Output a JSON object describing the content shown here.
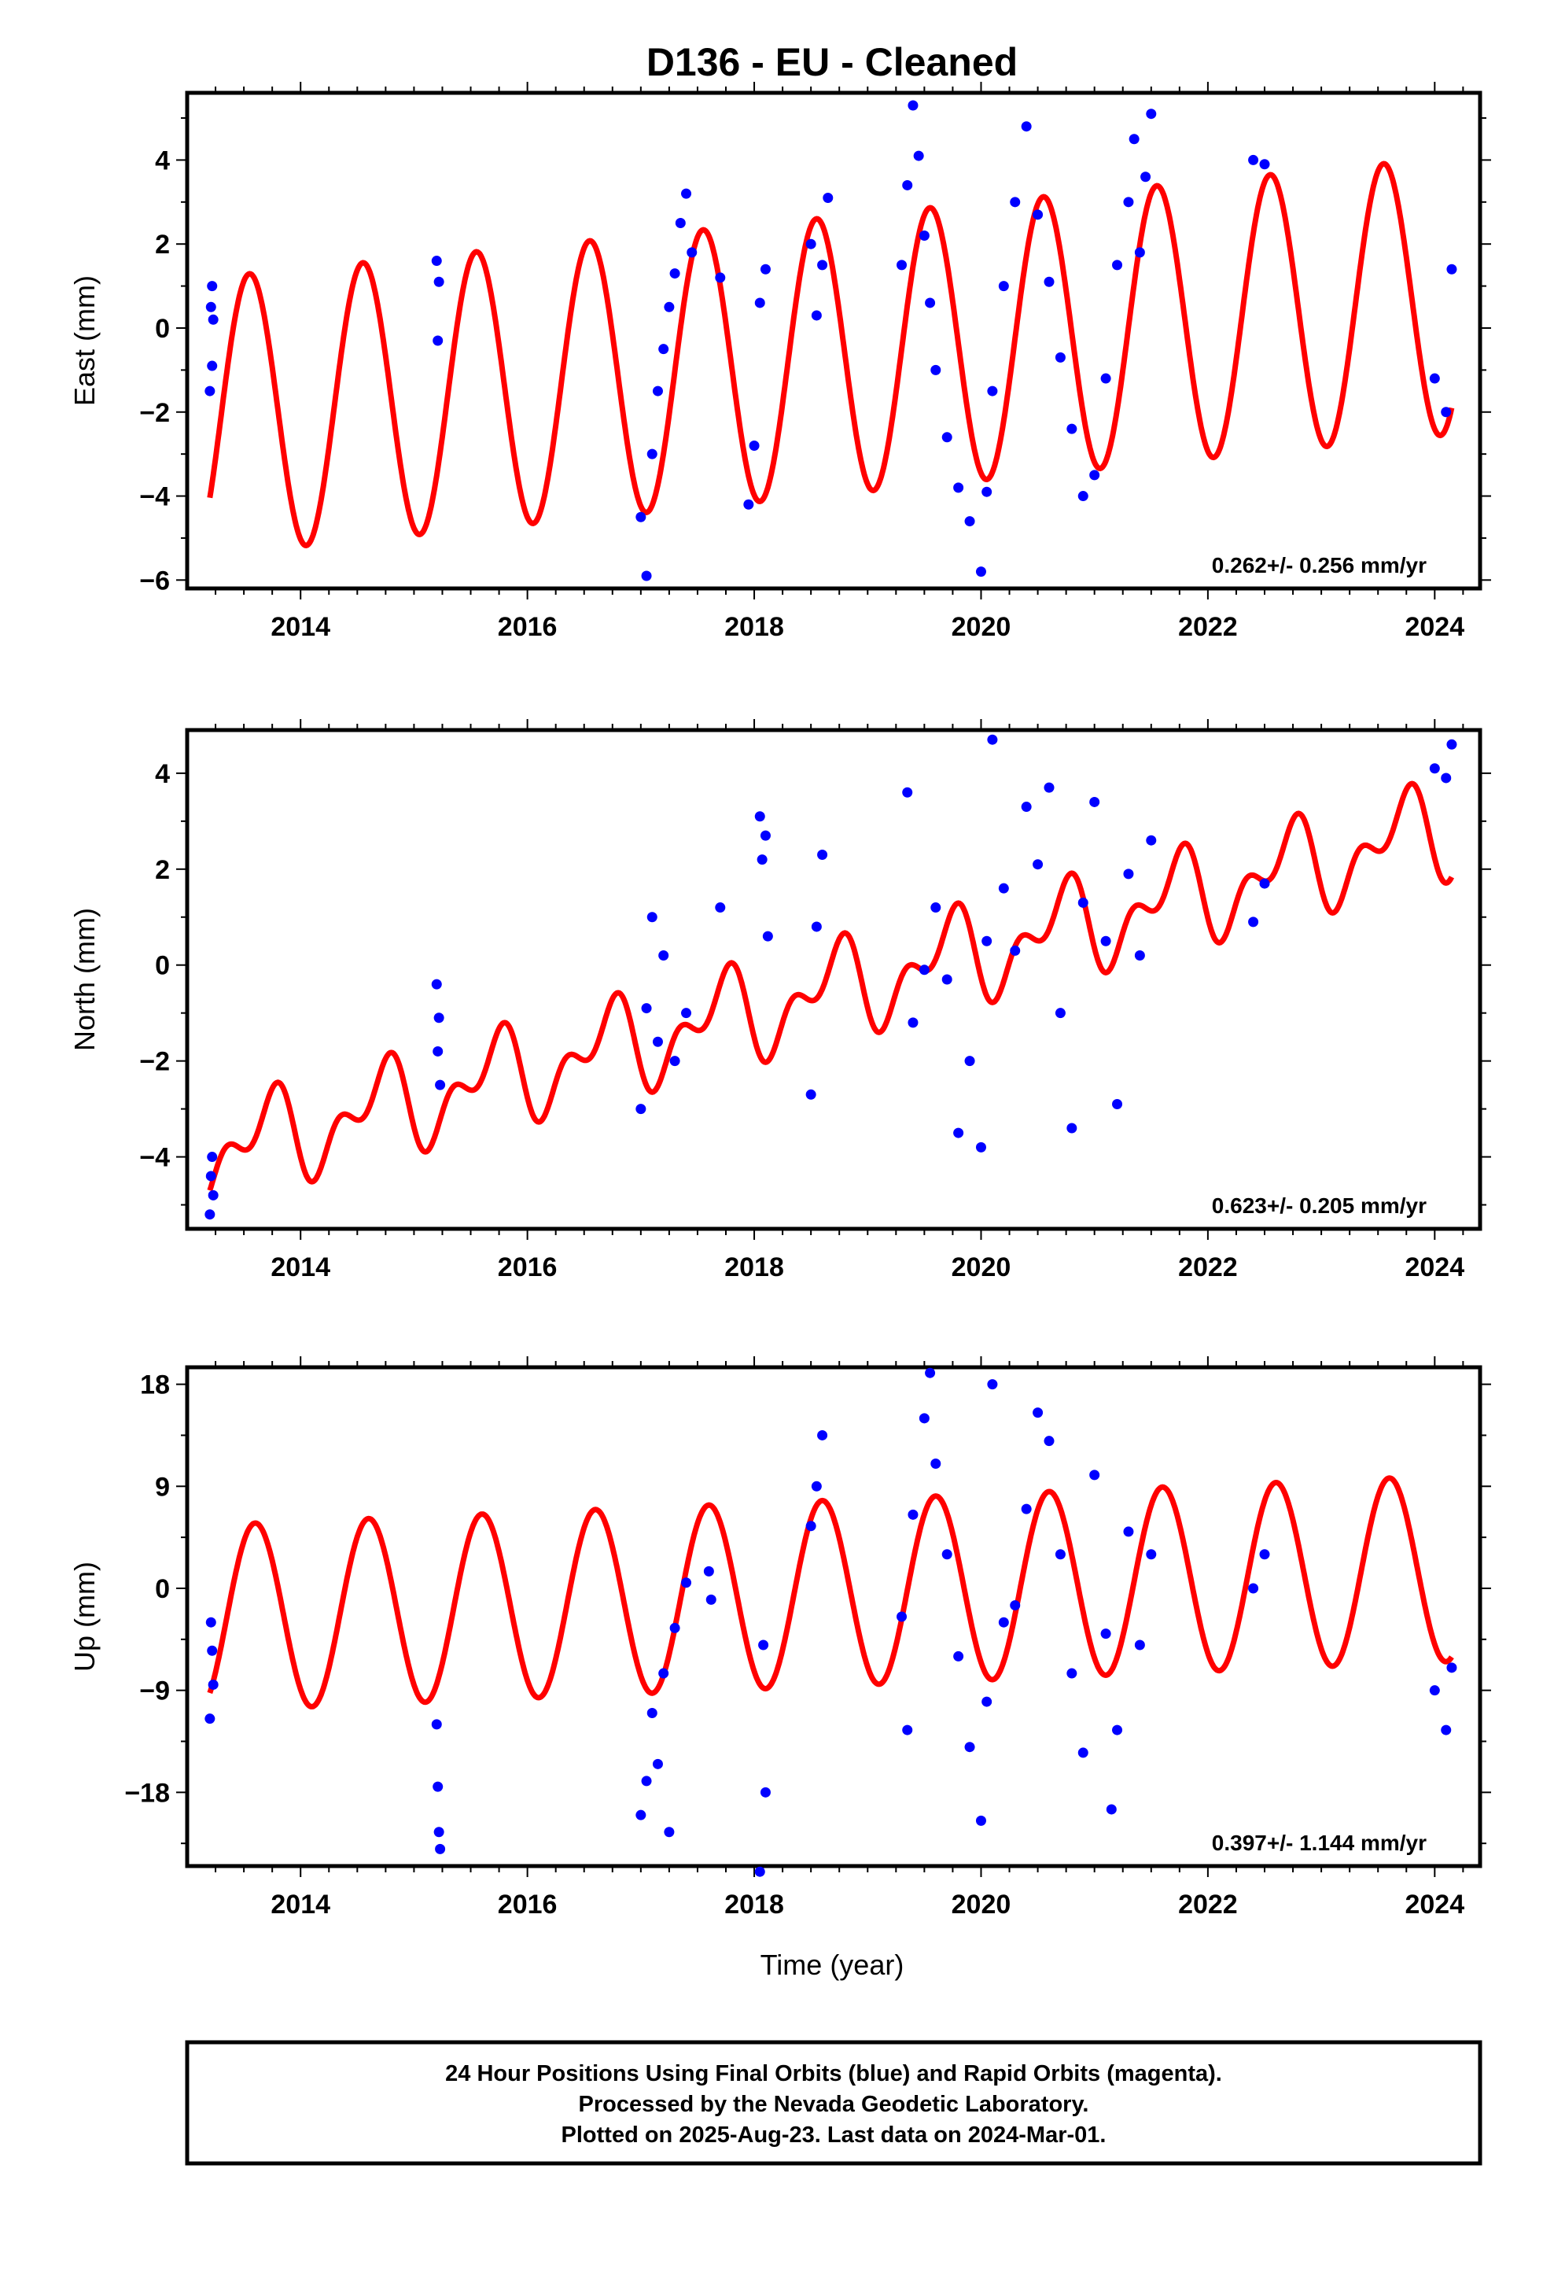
{
  "figure": {
    "title": "D136  - EU - Cleaned",
    "xlabel": "Time (year)",
    "footer": [
      "24 Hour Positions Using Final Orbits (blue) and Rapid Orbits (magenta).",
      "Processed by the Nevada Geodetic Laboratory.",
      "Plotted on 2025-Aug-23. Last data on 2024-Mar-01."
    ]
  },
  "colors": {
    "points": "#0000ff",
    "model": "#ff0000",
    "frame": "#000000"
  },
  "chart_data": [
    {
      "type": "scatter",
      "title": "D136  - EU - Cleaned",
      "ylabel": "East (mm)",
      "xlabel": "",
      "xlim": [
        2013.0,
        2024.4
      ],
      "ylim": [
        -6.2,
        5.6
      ],
      "xticks": [
        2014,
        2016,
        2018,
        2020,
        2022,
        2024
      ],
      "yticks": [
        -6,
        -4,
        -2,
        0,
        2,
        4
      ],
      "rate_label": "0.262+/- 0.256 mm/yr",
      "model": {
        "start": 2013.2,
        "end": 2024.15,
        "offset": -2.1,
        "rate": 0.262,
        "amplitude": 3.3,
        "phase_year": 2013.3
      },
      "series": [
        {
          "color": "blue",
          "x": [
            2013.2,
            2013.21,
            2013.22,
            2013.22,
            2013.23,
            2015.2,
            2015.21,
            2015.22,
            2017.0,
            2017.05,
            2017.1,
            2017.15,
            2017.2,
            2017.25,
            2017.3,
            2017.35,
            2017.4,
            2017.45,
            2017.7,
            2017.95,
            2018.0,
            2018.05,
            2018.1,
            2018.5,
            2018.55,
            2018.6,
            2018.65,
            2019.3,
            2019.35,
            2019.4,
            2019.45,
            2019.5,
            2019.55,
            2019.6,
            2019.7,
            2019.8,
            2019.9,
            2020.0,
            2020.05,
            2020.1,
            2020.2,
            2020.3,
            2020.4,
            2020.5,
            2020.6,
            2020.7,
            2020.8,
            2020.9,
            2021.0,
            2021.1,
            2021.2,
            2021.3,
            2021.35,
            2021.4,
            2021.45,
            2021.5,
            2022.4,
            2022.5,
            2024.0,
            2024.1,
            2024.15
          ],
          "y": [
            -1.5,
            0.5,
            -0.9,
            1.0,
            0.2,
            1.6,
            -0.3,
            1.1,
            -4.5,
            -5.9,
            -3.0,
            -1.5,
            -0.5,
            0.5,
            1.3,
            2.5,
            3.2,
            1.8,
            1.2,
            -4.2,
            -2.8,
            0.6,
            1.4,
            2.0,
            0.3,
            1.5,
            3.1,
            1.5,
            3.4,
            5.3,
            4.1,
            2.2,
            0.6,
            -1.0,
            -2.6,
            -3.8,
            -4.6,
            -5.8,
            -3.9,
            -1.5,
            1.0,
            3.0,
            4.8,
            2.7,
            1.1,
            -0.7,
            -2.4,
            -4.0,
            -3.5,
            -1.2,
            1.5,
            3.0,
            4.5,
            1.8,
            3.6,
            5.1,
            4.0,
            3.9,
            -1.2,
            -2.0,
            1.4
          ]
        }
      ]
    },
    {
      "type": "scatter",
      "title": "",
      "ylabel": "North (mm)",
      "xlabel": "",
      "xlim": [
        2013.0,
        2024.4
      ],
      "ylim": [
        -5.5,
        4.9
      ],
      "xticks": [
        2014,
        2016,
        2018,
        2020,
        2022,
        2024
      ],
      "yticks": [
        -4,
        -2,
        0,
        2,
        4
      ],
      "rate_label": "0.623+/- 0.205 mm/yr",
      "model": {
        "start": 2013.2,
        "end": 2024.15,
        "offset": -3.95,
        "rate": 0.623,
        "amplitude": 0.75,
        "phase_year": 2013.45,
        "semi_amplitude": 0.55,
        "semi_phase_year": 2013.7
      },
      "series": [
        {
          "color": "blue",
          "x": [
            2013.2,
            2013.21,
            2013.22,
            2013.23,
            2015.2,
            2015.21,
            2015.22,
            2015.23,
            2017.0,
            2017.05,
            2017.1,
            2017.15,
            2017.2,
            2017.3,
            2017.4,
            2017.7,
            2018.05,
            2018.07,
            2018.1,
            2018.12,
            2018.5,
            2018.55,
            2018.6,
            2019.35,
            2019.4,
            2019.5,
            2019.6,
            2019.7,
            2019.8,
            2019.9,
            2020.0,
            2020.05,
            2020.1,
            2020.2,
            2020.3,
            2020.4,
            2020.5,
            2020.6,
            2020.7,
            2020.8,
            2020.9,
            2021.0,
            2021.1,
            2021.2,
            2021.3,
            2021.4,
            2021.5,
            2022.4,
            2022.5,
            2024.0,
            2024.1,
            2024.15
          ],
          "y": [
            -5.2,
            -4.4,
            -4.0,
            -4.8,
            -0.4,
            -1.8,
            -1.1,
            -2.5,
            -3.0,
            -0.9,
            1.0,
            -1.6,
            0.2,
            -2.0,
            -1.0,
            1.2,
            3.1,
            2.2,
            2.7,
            0.6,
            -2.7,
            0.8,
            2.3,
            3.6,
            -1.2,
            -0.1,
            1.2,
            -0.3,
            -3.5,
            -2.0,
            -3.8,
            0.5,
            4.7,
            1.6,
            0.3,
            3.3,
            2.1,
            3.7,
            -1.0,
            -3.4,
            1.3,
            3.4,
            0.5,
            -2.9,
            1.9,
            0.2,
            2.6,
            0.9,
            1.7,
            4.1,
            3.9,
            4.6
          ]
        }
      ]
    },
    {
      "type": "scatter",
      "title": "",
      "ylabel": "Up (mm)",
      "xlabel": "Time (year)",
      "xlim": [
        2013.0,
        2024.4
      ],
      "ylim": [
        -24.5,
        19.5
      ],
      "xticks": [
        2014,
        2016,
        2018,
        2020,
        2022,
        2024
      ],
      "yticks": [
        -18,
        -9,
        0,
        9,
        18
      ],
      "rate_label": "0.397+/- 1.144 mm/yr",
      "model": {
        "start": 2013.2,
        "end": 2024.15,
        "offset": -2.6,
        "rate": 0.397,
        "amplitude": 8.2,
        "phase_year": 2013.35
      },
      "series": [
        {
          "color": "blue",
          "x": [
            2013.2,
            2013.21,
            2013.22,
            2013.23,
            2015.2,
            2015.21,
            2015.22,
            2015.23,
            2017.0,
            2017.05,
            2017.1,
            2017.15,
            2017.2,
            2017.25,
            2017.3,
            2017.4,
            2017.6,
            2017.62,
            2018.05,
            2018.08,
            2018.1,
            2018.5,
            2018.55,
            2018.6,
            2019.3,
            2019.35,
            2019.4,
            2019.5,
            2019.55,
            2019.6,
            2019.7,
            2019.8,
            2019.9,
            2020.0,
            2020.05,
            2020.1,
            2020.2,
            2020.3,
            2020.4,
            2020.5,
            2020.6,
            2020.7,
            2020.8,
            2020.9,
            2021.0,
            2021.1,
            2021.15,
            2021.2,
            2021.3,
            2021.4,
            2021.5,
            2022.4,
            2022.5,
            2024.0,
            2024.1,
            2024.15
          ],
          "y": [
            -11.5,
            -3.0,
            -5.5,
            -8.5,
            -12.0,
            -17.5,
            -21.5,
            -23.0,
            -20.0,
            -17.0,
            -11.0,
            -15.5,
            -7.5,
            -21.5,
            -3.5,
            0.5,
            1.5,
            -1.0,
            -25.0,
            -5.0,
            -18.0,
            5.5,
            9.0,
            13.5,
            -2.5,
            -12.5,
            6.5,
            15.0,
            19.0,
            11.0,
            3.0,
            -6.0,
            -14.0,
            -20.5,
            -10.0,
            18.0,
            -3.0,
            -1.5,
            7.0,
            15.5,
            13.0,
            3.0,
            -7.5,
            -14.5,
            10.0,
            -4.0,
            -19.5,
            -12.5,
            5.0,
            -5.0,
            3.0,
            0.0,
            3.0,
            -9.0,
            -12.5,
            -7.0
          ]
        }
      ]
    }
  ]
}
